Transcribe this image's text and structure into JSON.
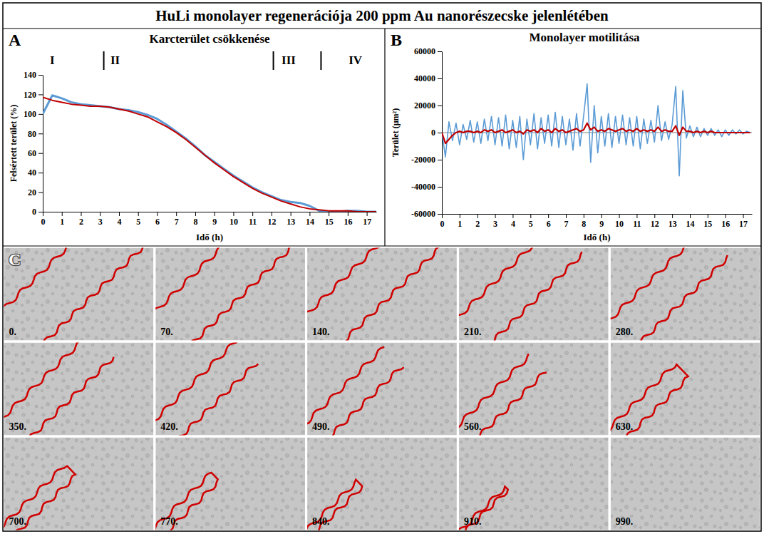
{
  "title": "HuLi monolayer regenerációja 200 ppm Au nanorészecske jelenlétében",
  "chart_data": [
    {
      "panel": "A",
      "type": "line",
      "title": "Karcterület csökkenése",
      "x_label": "Idő (h)",
      "y_label": "Felsértett terület (%)",
      "x": [
        0,
        0.5,
        1,
        1.5,
        2,
        2.5,
        3,
        3.5,
        4,
        4.5,
        5,
        5.5,
        6,
        6.5,
        7,
        7.5,
        8,
        8.5,
        9,
        9.5,
        10,
        10.5,
        11,
        11.5,
        12,
        12.5,
        13,
        13.5,
        14,
        14.5,
        15,
        15.5,
        16,
        16.5,
        17,
        17.5
      ],
      "xlim": [
        0,
        17.5
      ],
      "ylim": [
        0,
        140
      ],
      "xticks": [
        0,
        1,
        2,
        3,
        4,
        5,
        6,
        7,
        8,
        9,
        10,
        11,
        12,
        13,
        14,
        15,
        16,
        17
      ],
      "yticks": [
        0,
        20,
        40,
        60,
        80,
        100,
        120,
        140
      ],
      "grid": false,
      "series": [
        {
          "color": "#5b9bd5",
          "values": [
            100,
            119,
            116,
            112,
            110,
            109,
            108,
            107,
            105,
            104,
            102,
            99,
            95,
            89,
            82,
            75,
            67,
            58,
            51,
            44,
            37,
            31,
            25,
            20,
            16,
            12,
            10,
            9,
            6,
            1,
            0,
            0,
            1,
            1,
            0,
            0
          ]
        },
        {
          "color": "#c00000",
          "values": [
            117,
            114,
            112,
            110,
            109,
            108,
            108,
            107,
            105,
            103,
            100,
            97,
            92,
            87,
            81,
            74,
            66,
            58,
            50,
            43,
            36,
            30,
            24,
            19,
            15,
            11,
            8,
            5,
            3,
            2,
            1,
            1,
            1,
            0,
            0,
            0
          ]
        }
      ],
      "phase_lines": [
        3.2,
        12.1,
        14.6
      ],
      "annotations": [
        {
          "text": "I",
          "x": 0.5
        },
        {
          "text": "II",
          "x": 3.8
        },
        {
          "text": "III",
          "x": 12.9
        },
        {
          "text": "IV",
          "x": 16.4
        }
      ]
    },
    {
      "panel": "B",
      "type": "line",
      "title": "Monolayer motilitása",
      "x_label": "Idő (h)",
      "y_label": "Terület (µm²)",
      "x": [
        0,
        0.2,
        0.4,
        0.6,
        0.8,
        1,
        1.2,
        1.4,
        1.6,
        1.8,
        2,
        2.2,
        2.4,
        2.6,
        2.8,
        3,
        3.2,
        3.4,
        3.6,
        3.8,
        4,
        4.2,
        4.4,
        4.6,
        4.8,
        5,
        5.2,
        5.4,
        5.6,
        5.8,
        6,
        6.2,
        6.4,
        6.6,
        6.8,
        7,
        7.2,
        7.4,
        7.6,
        7.8,
        8,
        8.2,
        8.4,
        8.6,
        8.8,
        9,
        9.2,
        9.4,
        9.6,
        9.8,
        10,
        10.2,
        10.4,
        10.6,
        10.8,
        11,
        11.2,
        11.4,
        11.6,
        11.8,
        12,
        12.2,
        12.4,
        12.6,
        12.8,
        13,
        13.2,
        13.4,
        13.6,
        13.8,
        14,
        14.2,
        14.4,
        14.6,
        14.8,
        15,
        15.2,
        15.4,
        15.6,
        15.8,
        16,
        16.2,
        16.4,
        16.6,
        16.8,
        17,
        17.2,
        17.4
      ],
      "xlim": [
        0,
        17.5
      ],
      "ylim": [
        -60000,
        60000
      ],
      "xticks": [
        0,
        1,
        2,
        3,
        4,
        5,
        6,
        7,
        8,
        9,
        10,
        11,
        12,
        13,
        14,
        15,
        16,
        17
      ],
      "yticks": [
        -60000,
        -40000,
        -20000,
        0,
        20000,
        40000,
        60000
      ],
      "grid": false,
      "series": [
        {
          "color": "#5b9bd5",
          "values": [
            0,
            -18000,
            8000,
            -6000,
            7000,
            -9000,
            6000,
            -5000,
            9000,
            -7000,
            8000,
            -8000,
            10000,
            -6000,
            12000,
            -9000,
            11000,
            -10000,
            13000,
            -12000,
            9000,
            -11000,
            12000,
            -20000,
            10000,
            -9000,
            14000,
            -12000,
            11000,
            -8000,
            13000,
            -10000,
            15000,
            -11000,
            12000,
            -9000,
            10000,
            -13000,
            14000,
            -10000,
            12000,
            36000,
            -22000,
            20000,
            -15000,
            12000,
            -10000,
            14000,
            -11000,
            12000,
            -8000,
            13000,
            -9000,
            11000,
            -10000,
            12000,
            -12000,
            10000,
            -8000,
            9000,
            -7000,
            20000,
            -6000,
            8000,
            -5000,
            6000,
            34000,
            -32000,
            31000,
            -4000,
            5000,
            -3000,
            4000,
            -3000,
            3000,
            -2000,
            3000,
            -2000,
            2000,
            -3000,
            2000,
            -2000,
            2000,
            -1000,
            2000,
            -1000,
            1000,
            0
          ]
        },
        {
          "color": "#c00000",
          "values": [
            0,
            -8000,
            -5000,
            -2000,
            0,
            1000,
            0,
            1000,
            1000,
            0,
            1000,
            0,
            2000,
            1000,
            2000,
            0,
            1000,
            2000,
            0,
            1000,
            2000,
            0,
            1000,
            -1000,
            2000,
            1000,
            2000,
            0,
            3000,
            1000,
            2000,
            0,
            3000,
            1000,
            2000,
            0,
            1000,
            2000,
            3000,
            1000,
            2000,
            7000,
            2000,
            4000,
            1000,
            2000,
            1000,
            3000,
            2000,
            1000,
            2000,
            3000,
            1000,
            2000,
            1000,
            3000,
            1000,
            2000,
            1000,
            2000,
            1000,
            4000,
            1000,
            2000,
            1000,
            1000,
            5000,
            -2000,
            4000,
            1000,
            1000,
            0,
            1000,
            0,
            1000,
            0,
            1000,
            0,
            0,
            0,
            0,
            0,
            0,
            0,
            0,
            0,
            0,
            0
          ]
        }
      ]
    }
  ],
  "panel_c": {
    "label": "C",
    "frames": [
      "0.",
      "70.",
      "140.",
      "210.",
      "280.",
      "350.",
      "420.",
      "490.",
      "560.",
      "630.",
      "700.",
      "770.",
      "840.",
      "910.",
      "990."
    ]
  }
}
